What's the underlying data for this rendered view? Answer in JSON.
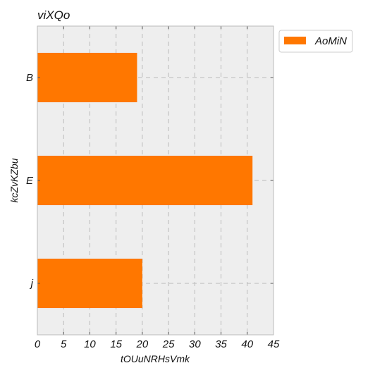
{
  "chart_data": {
    "type": "bar",
    "orientation": "horizontal",
    "title": "viXQo",
    "xlabel": "tOUuNRHsVmk",
    "ylabel": "kcZvKZbu",
    "categories": [
      "B",
      "E",
      "j"
    ],
    "series": [
      {
        "name": "AoMiN",
        "values": [
          19,
          41,
          20
        ],
        "color": "#ff7700"
      }
    ],
    "xlim": [
      0,
      45
    ],
    "xticks": [
      "0",
      "5",
      "10",
      "15",
      "20",
      "25",
      "30",
      "35",
      "40",
      "45"
    ],
    "grid": true,
    "legend_position": "upper-right-outside",
    "colors": {
      "plot_background": "#eeeeee",
      "grid": "#bbbbbb",
      "bar": "#ff7700"
    }
  }
}
